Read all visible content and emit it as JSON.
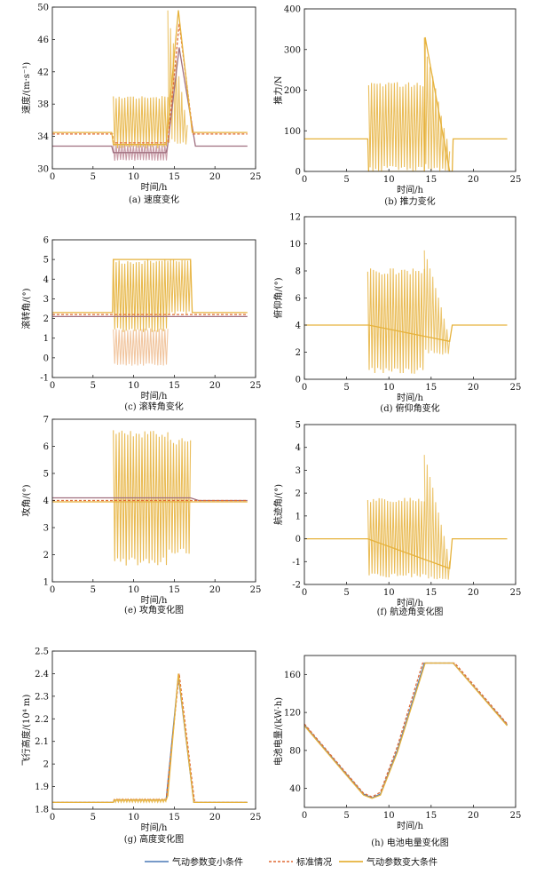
{
  "figure": {
    "legend": {
      "entries": [
        {
          "label": "气动参数变小条件",
          "color": "#4a78b5",
          "style": "solid"
        },
        {
          "label": "标准情况",
          "color": "#e06a35",
          "style": "dashed"
        },
        {
          "label": "气动参数变大条件",
          "color": "#e6b23c",
          "style": "solid"
        }
      ]
    }
  },
  "chart_data": [
    {
      "id": "a",
      "type": "line",
      "caption": "(a) 速度变化",
      "xlabel": "时间/h",
      "ylabel": "速度/(m·s⁻¹)",
      "xlim": [
        0,
        25
      ],
      "ylim": [
        30,
        50
      ],
      "xticks": [
        0,
        5,
        10,
        15,
        20,
        25
      ],
      "yticks": [
        30,
        34,
        38,
        42,
        46,
        50
      ],
      "series": [
        {
          "color": "#a07080",
          "points": [
            [
              0,
              32.8
            ],
            [
              7.3,
              32.8
            ],
            [
              7.5,
              32
            ],
            [
              14,
              32
            ],
            [
              14.2,
              33
            ],
            [
              15.6,
              45
            ],
            [
              17.6,
              32.8
            ],
            [
              24,
              32.8
            ]
          ]
        },
        {
          "color": "#e06a35",
          "dashed": true,
          "points": [
            [
              0,
              34.3
            ],
            [
              7.4,
              34.3
            ],
            [
              7.5,
              33.2
            ],
            [
              14.2,
              33.2
            ],
            [
              15.6,
              48
            ],
            [
              17.3,
              34.3
            ],
            [
              24,
              34.3
            ]
          ]
        },
        {
          "color": "#e6b23c",
          "points": [
            [
              0,
              34.5
            ],
            [
              7.3,
              34.5
            ],
            [
              7.5,
              33
            ],
            [
              14,
              33
            ],
            [
              15.5,
              49.6
            ],
            [
              17.2,
              34.5
            ],
            [
              24,
              34.5
            ]
          ]
        }
      ],
      "bands": [
        {
          "color": "#e6b23c",
          "opacity": 0.85,
          "x_range": [
            7.5,
            14.2
          ],
          "y_range": [
            32.5,
            39.0
          ]
        },
        {
          "color": "#b07080",
          "opacity": 0.7,
          "x_range": [
            7.5,
            14.2
          ],
          "y_range": [
            31.0,
            33.0
          ]
        },
        {
          "color": "#e6b23c",
          "opacity": 0.75,
          "x_range": [
            14.2,
            16.6
          ],
          "y_range": [
            33.0,
            49.6
          ],
          "taper": true
        }
      ]
    },
    {
      "id": "b",
      "type": "line",
      "caption": "(b) 推力变化",
      "xlabel": "时间/h",
      "ylabel": "推力/N",
      "xlim": [
        0,
        25
      ],
      "ylim": [
        0,
        400
      ],
      "xticks": [
        0,
        5,
        10,
        15,
        20,
        25
      ],
      "yticks": [
        0,
        100,
        200,
        300,
        400
      ],
      "series": [
        {
          "color": "#e6b23c",
          "points": [
            [
              0,
              80
            ],
            [
              7.5,
              80
            ],
            [
              7.6,
              0
            ],
            [
              14.2,
              0
            ],
            [
              14.3,
              330
            ],
            [
              17.2,
              0
            ],
            [
              17.5,
              0
            ],
            [
              17.6,
              80
            ],
            [
              24,
              80
            ]
          ]
        }
      ],
      "bands": [
        {
          "color": "#e6b23c",
          "opacity": 0.85,
          "x_range": [
            7.6,
            14.2
          ],
          "y_range": [
            0,
            220
          ]
        },
        {
          "color": "#e6b23c",
          "opacity": 0.8,
          "x_range": [
            14.2,
            17.2
          ],
          "y_range": [
            0,
            330
          ],
          "taper": true
        }
      ]
    },
    {
      "id": "c",
      "type": "line",
      "caption": "(c) 滚转角变化",
      "xlabel": "时间/h",
      "ylabel": "滚转角/(°)",
      "xlim": [
        0,
        25
      ],
      "ylim": [
        -1,
        6
      ],
      "xticks": [
        0,
        5,
        10,
        15,
        20,
        25
      ],
      "yticks": [
        -1,
        0,
        1,
        2,
        3,
        4,
        5,
        6
      ],
      "series": [
        {
          "color": "#a07080",
          "points": [
            [
              0,
              2.1
            ],
            [
              7.4,
              2.1
            ],
            [
              7.5,
              2.1
            ],
            [
              16.8,
              2.1
            ],
            [
              17,
              2.1
            ],
            [
              24,
              2.1
            ]
          ]
        },
        {
          "color": "#e06a35",
          "dashed": true,
          "points": [
            [
              0,
              2.2
            ],
            [
              7.4,
              2.2
            ],
            [
              17,
              2.2
            ],
            [
              24,
              2.2
            ]
          ]
        },
        {
          "color": "#e6b23c",
          "points": [
            [
              0,
              2.3
            ],
            [
              7.4,
              2.3
            ],
            [
              7.5,
              5
            ],
            [
              17,
              5
            ],
            [
              17.2,
              2.3
            ],
            [
              24,
              2.3
            ]
          ]
        }
      ],
      "bands": [
        {
          "color": "#e6b23c",
          "opacity": 0.9,
          "x_range": [
            7.5,
            14.2
          ],
          "y_range": [
            1.3,
            5.0
          ]
        },
        {
          "color": "#e8a060",
          "opacity": 0.6,
          "x_range": [
            7.5,
            14.2
          ],
          "y_range": [
            -0.4,
            1.5
          ]
        },
        {
          "color": "#e6b23c",
          "opacity": 0.85,
          "x_range": [
            14.2,
            17.0
          ],
          "y_range": [
            2.2,
            5.0
          ]
        }
      ]
    },
    {
      "id": "d",
      "type": "line",
      "caption": "(d) 俯仰角变化",
      "xlabel": "时间/h",
      "ylabel": "俯仰角/(°)",
      "xlim": [
        0,
        25
      ],
      "ylim": [
        0,
        12
      ],
      "xticks": [
        0,
        5,
        10,
        15,
        20,
        25
      ],
      "yticks": [
        0,
        2,
        4,
        6,
        8,
        10,
        12
      ],
      "series": [
        {
          "color": "#e6b23c",
          "points": [
            [
              0,
              4
            ],
            [
              7.4,
              4
            ],
            [
              7.6,
              4
            ],
            [
              17.2,
              2.8
            ],
            [
              17.5,
              4
            ],
            [
              24,
              4
            ]
          ]
        }
      ],
      "bands": [
        {
          "color": "#e6b23c",
          "opacity": 0.85,
          "x_range": [
            7.5,
            14.2
          ],
          "y_range": [
            0.4,
            8.2
          ]
        },
        {
          "color": "#e6b23c",
          "opacity": 0.75,
          "x_range": [
            14.2,
            17.2
          ],
          "y_range": [
            1.8,
            10.0
          ],
          "taper": true
        }
      ]
    },
    {
      "id": "e",
      "type": "line",
      "caption": "(e) 攻角变化图",
      "xlabel": "时间/h",
      "ylabel": "攻角/(°)",
      "xlim": [
        0,
        25
      ],
      "ylim": [
        1,
        7
      ],
      "xticks": [
        0,
        5,
        10,
        15,
        20,
        25
      ],
      "yticks": [
        1,
        2,
        3,
        4,
        5,
        6,
        7
      ],
      "series": [
        {
          "color": "#a07080",
          "points": [
            [
              0,
              4.1
            ],
            [
              7.4,
              4.1
            ],
            [
              17,
              4.1
            ],
            [
              18,
              4.0
            ],
            [
              24,
              4.0
            ]
          ]
        },
        {
          "color": "#e06a35",
          "dashed": true,
          "points": [
            [
              0,
              4.0
            ],
            [
              7.4,
              4.0
            ],
            [
              17,
              4.0
            ],
            [
              24,
              4.0
            ]
          ]
        },
        {
          "color": "#e6b23c",
          "points": [
            [
              0,
              3.95
            ],
            [
              7.4,
              3.95
            ],
            [
              17,
              3.95
            ],
            [
              24,
              3.95
            ]
          ]
        }
      ],
      "bands": [
        {
          "color": "#e6b23c",
          "opacity": 0.88,
          "x_range": [
            7.5,
            14.2
          ],
          "y_range": [
            1.6,
            6.6
          ]
        },
        {
          "color": "#e6b23c",
          "opacity": 0.85,
          "x_range": [
            14.2,
            17.0
          ],
          "y_range": [
            2.0,
            6.3
          ]
        }
      ]
    },
    {
      "id": "f",
      "type": "line",
      "caption": "(f) 航迹角变化图",
      "xlabel": "时间/h",
      "ylabel": "航迹角/(°)",
      "xlim": [
        0,
        25
      ],
      "ylim": [
        -2,
        5
      ],
      "xticks": [
        0,
        5,
        10,
        15,
        20,
        25
      ],
      "yticks": [
        -2,
        -1,
        0,
        1,
        2,
        3,
        4,
        5
      ],
      "series": [
        {
          "color": "#e6b23c",
          "points": [
            [
              0,
              0
            ],
            [
              7.4,
              0
            ],
            [
              7.5,
              0
            ],
            [
              17.2,
              -1.3
            ],
            [
              17.5,
              0
            ],
            [
              24,
              0
            ]
          ]
        }
      ],
      "bands": [
        {
          "color": "#e6b23c",
          "opacity": 0.85,
          "x_range": [
            7.5,
            14.2
          ],
          "y_range": [
            -1.7,
            1.8
          ]
        },
        {
          "color": "#e6b23c",
          "opacity": 0.75,
          "x_range": [
            14.2,
            17.2
          ],
          "y_range": [
            -1.8,
            4.0
          ],
          "taper": true
        }
      ]
    },
    {
      "id": "g",
      "type": "line",
      "caption": "(g) 高度变化图",
      "xlabel": "时间/h",
      "ylabel": "飞行高度/(10⁴ m)",
      "xlim": [
        0,
        25
      ],
      "ylim": [
        1.8,
        2.5
      ],
      "xticks": [
        0,
        5,
        10,
        15,
        20,
        25
      ],
      "yticks": [
        1.8,
        1.9,
        2.0,
        2.1,
        2.2,
        2.3,
        2.4,
        2.5
      ],
      "series": [
        {
          "color": "#4a78b5",
          "points": [
            [
              0,
              1.83
            ],
            [
              7.5,
              1.83
            ],
            [
              7.6,
              1.84
            ],
            [
              14,
              1.84
            ],
            [
              15.5,
              2.39
            ],
            [
              17.4,
              1.83
            ],
            [
              24,
              1.83
            ]
          ]
        },
        {
          "color": "#e06a35",
          "dashed": true,
          "points": [
            [
              0,
              1.83
            ],
            [
              7.5,
              1.83
            ],
            [
              7.6,
              1.842
            ],
            [
              14,
              1.842
            ],
            [
              15.6,
              2.4
            ],
            [
              17.5,
              1.83
            ],
            [
              24,
              1.83
            ]
          ]
        },
        {
          "color": "#e6b23c",
          "points": [
            [
              0,
              1.83
            ],
            [
              7.5,
              1.83
            ],
            [
              7.6,
              1.84
            ],
            [
              14,
              1.84
            ],
            [
              14.2,
              1.86
            ],
            [
              15.5,
              2.4
            ],
            [
              17.4,
              1.83
            ],
            [
              24,
              1.83
            ]
          ]
        }
      ],
      "bands": [
        {
          "color": "#e6b23c",
          "opacity": 0.85,
          "x_range": [
            7.6,
            14.0
          ],
          "y_range": [
            1.83,
            1.845
          ]
        }
      ]
    },
    {
      "id": "h",
      "type": "line",
      "caption": "(h) 电池电量变化图",
      "xlabel": "时间/h",
      "ylabel": "电池电量/(kW·h)",
      "xlim": [
        0,
        25
      ],
      "ylim": [
        20,
        180
      ],
      "xticks": [
        0,
        5,
        10,
        15,
        20,
        25
      ],
      "yticks": [
        40,
        80,
        120,
        160
      ],
      "series": [
        {
          "color": "#4a78b5",
          "points": [
            [
              0,
              107
            ],
            [
              4,
              65
            ],
            [
              7,
              34
            ],
            [
              8,
              30
            ],
            [
              9,
              34
            ],
            [
              11,
              80
            ],
            [
              14.2,
              172
            ],
            [
              17.6,
              172
            ],
            [
              24,
              107
            ]
          ]
        },
        {
          "color": "#e06a35",
          "dashed": true,
          "points": [
            [
              0,
              108
            ],
            [
              4,
              66
            ],
            [
              7,
              35
            ],
            [
              8,
              31
            ],
            [
              9,
              36
            ],
            [
              11,
              84
            ],
            [
              14,
              172
            ],
            [
              17.8,
              172
            ],
            [
              24,
              108
            ]
          ]
        },
        {
          "color": "#e6b23c",
          "points": [
            [
              0,
              106
            ],
            [
              4,
              64
            ],
            [
              7,
              33
            ],
            [
              8,
              29.5
            ],
            [
              9,
              33
            ],
            [
              11,
              78
            ],
            [
              14.3,
              172
            ],
            [
              17.6,
              172
            ],
            [
              24,
              106
            ]
          ]
        }
      ],
      "bands": []
    }
  ]
}
